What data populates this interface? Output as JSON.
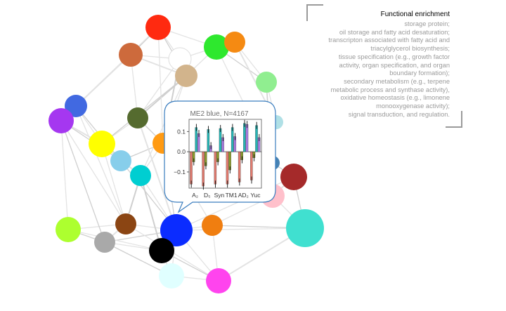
{
  "network": {
    "nodes": [
      {
        "id": "n1",
        "color": "#ff2a10",
        "r": 18
      },
      {
        "id": "n2",
        "color": "#cd6a3c",
        "r": 17
      },
      {
        "id": "n3",
        "color": "#ffffff",
        "r": 16
      },
      {
        "id": "n4",
        "color": "#2ee82e",
        "r": 18
      },
      {
        "id": "n5",
        "color": "#f58a12",
        "r": 15
      },
      {
        "id": "n6",
        "color": "#d2b48c",
        "r": 16
      },
      {
        "id": "n7",
        "color": "#90ee90",
        "r": 15
      },
      {
        "id": "n8",
        "color": "#4169e1",
        "r": 16
      },
      {
        "id": "n9",
        "color": "#a537f0",
        "r": 18
      },
      {
        "id": "n10",
        "color": "#556b2f",
        "r": 15
      },
      {
        "id": "n11",
        "color": "#ffff00",
        "r": 19
      },
      {
        "id": "n12",
        "color": "#ff9a12",
        "r": 15
      },
      {
        "id": "n13",
        "color": "#87ceeb",
        "r": 15
      },
      {
        "id": "n14",
        "color": "#00ced1",
        "r": 15
      },
      {
        "id": "n15",
        "color": "#b0e0e6",
        "r": 10
      },
      {
        "id": "n16",
        "color": "#4682b4",
        "r": 10
      },
      {
        "id": "n17",
        "color": "#a52a2a",
        "r": 19
      },
      {
        "id": "n18",
        "color": "#ffc0cb",
        "r": 17
      },
      {
        "id": "n19",
        "color": "#adff2f",
        "r": 18
      },
      {
        "id": "n20",
        "color": "#8b4513",
        "r": 15
      },
      {
        "id": "n21",
        "color": "#a9a9a9",
        "r": 15
      },
      {
        "id": "n22",
        "color": "#0b2cff",
        "r": 23
      },
      {
        "id": "n23",
        "color": "#f07e10",
        "r": 15
      },
      {
        "id": "n24",
        "color": "#40e0d0",
        "r": 27
      },
      {
        "id": "n25",
        "color": "#000000",
        "r": 18
      },
      {
        "id": "n26",
        "color": "#e0ffff",
        "r": 18
      },
      {
        "id": "n27",
        "color": "#ff44ee",
        "r": 18
      }
    ]
  },
  "tooltip": {
    "title": "ME2 blue, N=4167",
    "categories": [
      "A₂",
      "D₅",
      "Syn",
      "TM1",
      "AD₂",
      "Yuc"
    ],
    "y_ticks": [
      "0.1",
      "0.0",
      "−0.1"
    ],
    "border_color": "#3a7dbf"
  },
  "chart_data": {
    "type": "bar",
    "title": "ME2 blue, N=4167",
    "categories": [
      "A₂",
      "D₅",
      "Syn",
      "TM1",
      "AD₂",
      "Yuc"
    ],
    "ylim": [
      -0.18,
      0.16
    ],
    "series": [
      {
        "color": "#e07a6e",
        "values": [
          -0.16,
          -0.17,
          -0.16,
          -0.16,
          -0.15,
          -0.14
        ]
      },
      {
        "color": "#8a9a2a",
        "values": [
          -0.05,
          -0.07,
          -0.05,
          -0.09,
          -0.04,
          -0.03
        ]
      },
      {
        "color": "#26b3b3",
        "values": [
          0.12,
          0.11,
          0.115,
          0.12,
          0.14,
          0.13
        ]
      },
      {
        "color": "#a87ae0",
        "values": [
          0.09,
          0.03,
          0.07,
          0.075,
          0.135,
          0.07
        ]
      }
    ]
  },
  "enrichment": {
    "title": "Functional enrichment",
    "lines": [
      "storage protein;",
      "oil storage and fatty acid desaturation;",
      "transcripton associated with fatty acid and",
      "triacylglycerol biosynthesis;",
      "tissue specification (e.g., growth factor",
      "activity, organ specification, and organ",
      "boundary formation);",
      "secondary metabolism (e.g., terpene",
      "metabolic process and synthase activity),",
      "oxidative homeostasis (e.g., limonene",
      "monooxygenase activity);",
      "signal transduction, and regulation."
    ]
  }
}
